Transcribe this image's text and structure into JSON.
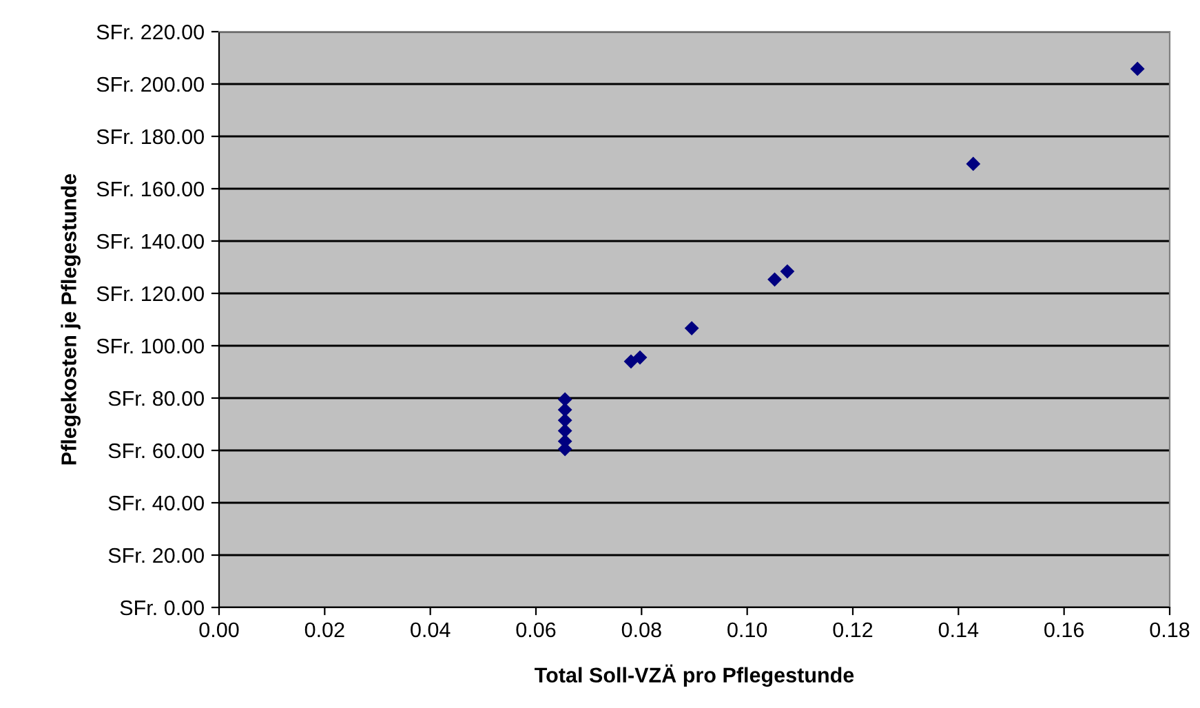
{
  "chart_data": {
    "type": "scatter",
    "xlabel": "Total Soll-VZÄ pro Pflegestunde",
    "ylabel": "Pflegekosten je Pflegestunde",
    "x": [
      0.0655,
      0.0655,
      0.0655,
      0.0655,
      0.0655,
      0.0655,
      0.078,
      0.0797,
      0.0895,
      0.1052,
      0.1076,
      0.1428,
      0.1739
    ],
    "series": [
      {
        "color": "#000080",
        "values": [
          79.5,
          75.5,
          71.5,
          67.5,
          63.5,
          60.5,
          94,
          95.5,
          106.7,
          125.3,
          128.4,
          169.5,
          205.8
        ]
      }
    ],
    "marker": "diamond",
    "grid": "y",
    "legend": false,
    "xlim": [
      0,
      0.18
    ],
    "xticks": [
      {
        "value": 0,
        "label": "0.00"
      },
      {
        "value": 0.02,
        "label": "0.02"
      },
      {
        "value": 0.04,
        "label": "0.04"
      },
      {
        "value": 0.06,
        "label": "0.06"
      },
      {
        "value": 0.08,
        "label": "0.08"
      },
      {
        "value": 0.1,
        "label": "0.10"
      },
      {
        "value": 0.12,
        "label": "0.12"
      },
      {
        "value": 0.14,
        "label": "0.14"
      },
      {
        "value": 0.16,
        "label": "0.16"
      },
      {
        "value": 0.18,
        "label": "0.18"
      }
    ],
    "ylim": [
      0,
      220
    ],
    "yticks": [
      {
        "value": 0,
        "label": "SFr. 0.00"
      },
      {
        "value": 20,
        "label": "SFr. 20.00"
      },
      {
        "value": 40,
        "label": "SFr. 40.00"
      },
      {
        "value": 60,
        "label": "SFr. 60.00"
      },
      {
        "value": 80,
        "label": "SFr. 80.00"
      },
      {
        "value": 100,
        "label": "SFr. 100.00"
      },
      {
        "value": 120,
        "label": "SFr. 120.00"
      },
      {
        "value": 140,
        "label": "SFr. 140.00"
      },
      {
        "value": 160,
        "label": "SFr. 160.00"
      },
      {
        "value": 180,
        "label": "SFr. 180.00"
      },
      {
        "value": 200,
        "label": "SFr. 200.00"
      },
      {
        "value": 220,
        "label": "SFr. 220.00"
      }
    ]
  }
}
